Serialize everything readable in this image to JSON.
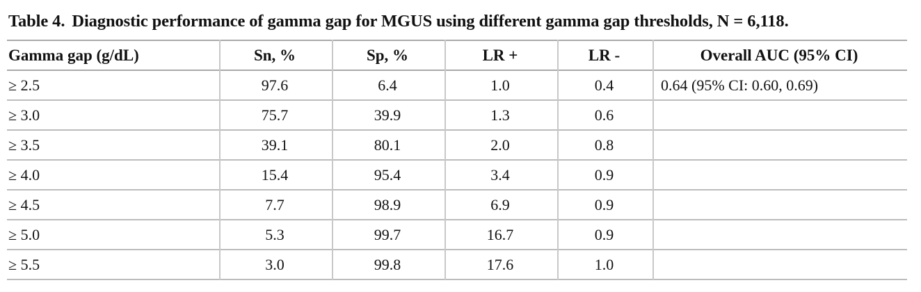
{
  "caption": {
    "label": "Table 4.",
    "text": "Diagnostic performance of gamma gap for MGUS using different gamma gap thresholds, N = 6,118."
  },
  "table": {
    "headers": [
      "Gamma gap (g/dL)",
      "Sn, %",
      "Sp, %",
      "LR +",
      "LR -",
      "Overall AUC (95% CI)"
    ],
    "rows": [
      [
        "≥ 2.5",
        "97.6",
        "6.4",
        "1.0",
        "0.4",
        "0.64 (95% CI: 0.60, 0.69)"
      ],
      [
        "≥ 3.0",
        "75.7",
        "39.9",
        "1.3",
        "0.6",
        ""
      ],
      [
        "≥ 3.5",
        "39.1",
        "80.1",
        "2.0",
        "0.8",
        ""
      ],
      [
        "≥ 4.0",
        "15.4",
        "95.4",
        "3.4",
        "0.9",
        ""
      ],
      [
        "≥ 4.5",
        "7.7",
        "98.9",
        "6.9",
        "0.9",
        ""
      ],
      [
        "≥ 5.0",
        "5.3",
        "99.7",
        "16.7",
        "0.9",
        ""
      ],
      [
        "≥ 5.5",
        "3.0",
        "99.8",
        "17.6",
        "1.0",
        ""
      ]
    ]
  }
}
